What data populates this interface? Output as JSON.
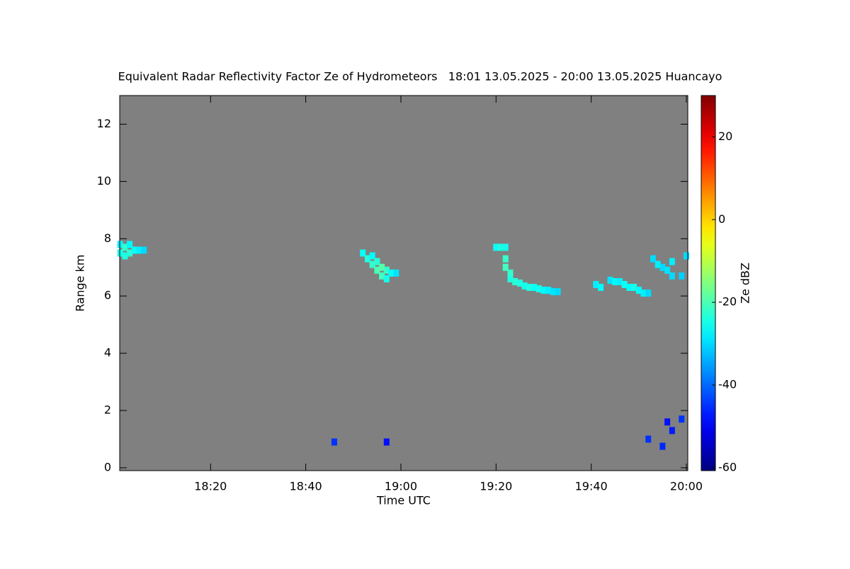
{
  "chart_data": {
    "type": "heatmap",
    "title": "Equivalent Radar Reflectivity Factor Ze of Hydrometeors   18:01 13.05.2025 - 20:00 13.05.2025 Huancayo",
    "x_label": "Time UTC",
    "y_label": "Range km",
    "colorbar_label": "Ze dBZ",
    "colormap": "jet",
    "background": "#808080",
    "x": [
      1081,
      1081,
      1082,
      1082,
      1083,
      1083,
      1084,
      1085,
      1086,
      1132,
      1133,
      1134,
      1134,
      1135,
      1135,
      1136,
      1136,
      1137,
      1137,
      1138,
      1139,
      1160,
      1161,
      1162,
      1162,
      1162,
      1163,
      1163,
      1164,
      1165,
      1166,
      1167,
      1168,
      1169,
      1170,
      1171,
      1172,
      1173,
      1181,
      1182,
      1184,
      1185,
      1186,
      1187,
      1188,
      1189,
      1190,
      1191,
      1192,
      1193,
      1194,
      1195,
      1196,
      1197,
      1197,
      1199,
      1200,
      1126,
      1137,
      1192,
      1196,
      1197,
      1195,
      1199
    ],
    "y": [
      7.5,
      7.8,
      7.4,
      7.7,
      7.5,
      7.8,
      7.6,
      7.6,
      7.6,
      7.5,
      7.3,
      7.1,
      7.4,
      6.9,
      7.2,
      6.7,
      7.0,
      6.6,
      6.9,
      6.8,
      6.8,
      7.7,
      7.7,
      7.7,
      7.3,
      7.0,
      6.8,
      6.6,
      6.5,
      6.45,
      6.35,
      6.3,
      6.3,
      6.25,
      6.2,
      6.2,
      6.15,
      6.15,
      6.4,
      6.3,
      6.55,
      6.5,
      6.5,
      6.4,
      6.3,
      6.3,
      6.2,
      6.1,
      6.1,
      7.3,
      7.1,
      7.0,
      6.9,
      7.2,
      6.7,
      6.7,
      7.4,
      0.9,
      0.9,
      1.0,
      1.6,
      1.3,
      0.75,
      1.7
    ],
    "values": [
      -25,
      -28,
      -24,
      -22,
      -23,
      -27,
      -26,
      -28,
      -30,
      -26,
      -24,
      -22,
      -27,
      -20,
      -23,
      -21,
      -19,
      -25,
      -22,
      -26,
      -29,
      -26,
      -24,
      -25,
      -22,
      -21,
      -22,
      -24,
      -23,
      -24,
      -25,
      -24,
      -26,
      -25,
      -27,
      -28,
      -29,
      -30,
      -28,
      -27,
      -29,
      -27,
      -28,
      -26,
      -27,
      -25,
      -27,
      -28,
      -30,
      -30,
      -28,
      -30,
      -29,
      -28,
      -30,
      -31,
      -30,
      -45,
      -48,
      -45,
      -48,
      -47,
      -46,
      -45
    ],
    "xlim": [
      1080.9,
      1200.3
    ],
    "ylim": [
      -0.1,
      13
    ],
    "xticks": [
      {
        "value": 1100,
        "label": "18:20"
      },
      {
        "value": 1120,
        "label": "18:40"
      },
      {
        "value": 1140,
        "label": "19:00"
      },
      {
        "value": 1160,
        "label": "19:20"
      },
      {
        "value": 1180,
        "label": "19:40"
      },
      {
        "value": 1200,
        "label": "20:00"
      }
    ],
    "yticks": [
      0,
      2,
      4,
      6,
      8,
      10,
      12
    ],
    "clim": [
      -60.7,
      30
    ],
    "cticks": [
      -60,
      -40,
      -20,
      0,
      20
    ]
  }
}
